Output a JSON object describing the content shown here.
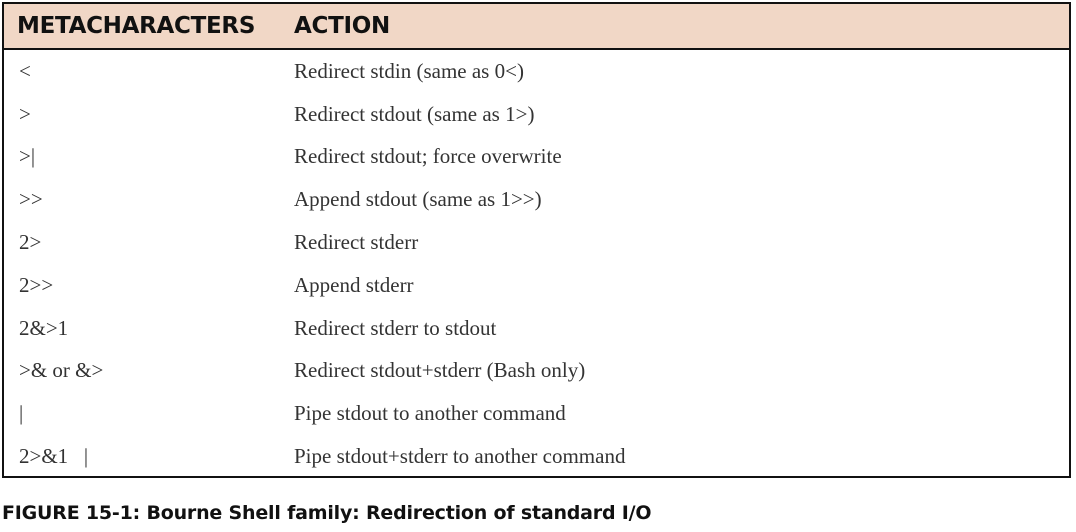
{
  "table": {
    "headers": {
      "metacharacters": "METACHARACTERS",
      "action": "ACTION"
    },
    "rows": [
      {
        "meta": "<",
        "action": "Redirect stdin (same as 0<)"
      },
      {
        "meta": ">",
        "action": "Redirect stdout (same as 1>)"
      },
      {
        "meta": ">|",
        "action": "Redirect stdout; force overwrite"
      },
      {
        "meta": ">>",
        "action": "Append stdout (same as 1>>)"
      },
      {
        "meta": "2>",
        "action": "Redirect stderr"
      },
      {
        "meta": "2>>",
        "action": "Append stderr"
      },
      {
        "meta": "2&>1",
        "action": "Redirect stderr to stdout"
      },
      {
        "meta": ">& or &>",
        "action": "Redirect stdout+stderr (Bash only)"
      },
      {
        "meta": "|",
        "action": "Pipe stdout to another command"
      },
      {
        "meta": "2>&1   |",
        "action": "Pipe stdout+stderr to another command"
      }
    ]
  },
  "caption": {
    "label": "FIGURE 15-1:",
    "text": "Bourne Shell family: Redirection of standard I/O"
  },
  "colors": {
    "header_background": "#f1d7c6",
    "border": "#111111",
    "text": "#333333"
  }
}
